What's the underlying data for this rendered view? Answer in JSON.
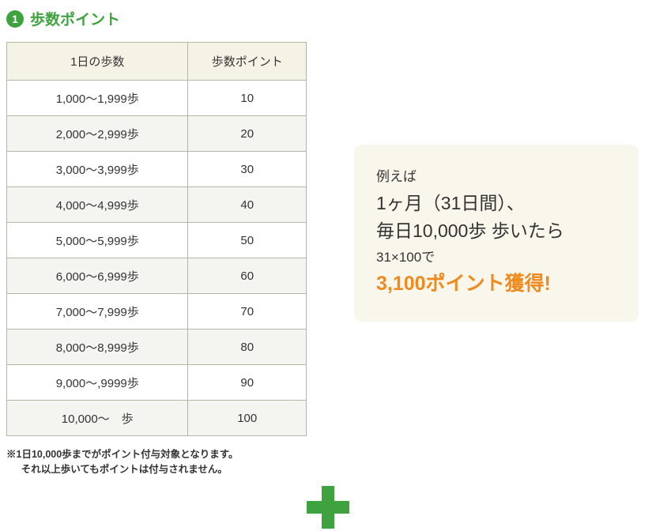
{
  "heading": {
    "number": "1",
    "title": "歩数ポイント"
  },
  "table": {
    "headers": {
      "steps": "1日の歩数",
      "points": "歩数ポイント"
    },
    "rows": [
      {
        "steps": "1,000〜1,999歩",
        "points": "10",
        "alt": false
      },
      {
        "steps": "2,000〜2,999歩",
        "points": "20",
        "alt": true
      },
      {
        "steps": "3,000〜3,999歩",
        "points": "30",
        "alt": false
      },
      {
        "steps": "4,000〜4,999歩",
        "points": "40",
        "alt": true
      },
      {
        "steps": "5,000〜5,999歩",
        "points": "50",
        "alt": false
      },
      {
        "steps": "6,000〜6,999歩",
        "points": "60",
        "alt": true
      },
      {
        "steps": "7,000〜7,999歩",
        "points": "70",
        "alt": false
      },
      {
        "steps": "8,000〜8,999歩",
        "points": "80",
        "alt": true
      },
      {
        "steps": "9,000〜,9999歩",
        "points": "90",
        "alt": false
      },
      {
        "steps": "10,000〜　歩",
        "points": "100",
        "alt": true
      }
    ]
  },
  "footnote": {
    "line1": "※1日10,000歩までがポイント付与対象となります。",
    "line2": "それ以上歩いてもポイントは付与されません。"
  },
  "example": {
    "intro": "例えば",
    "line1": "1ヶ月（31日間）、",
    "line2": "毎日10,000歩 歩いたら",
    "calc": "31×100で",
    "result": "3,100ポイント獲得!"
  },
  "colors": {
    "green": "#3ea33e",
    "orange": "#ee8a1e",
    "header_bg": "#f5f3e6",
    "alt_row": "#f4f4f0",
    "border": "#b5b5a8",
    "example_bg": "#f9f6ec"
  }
}
